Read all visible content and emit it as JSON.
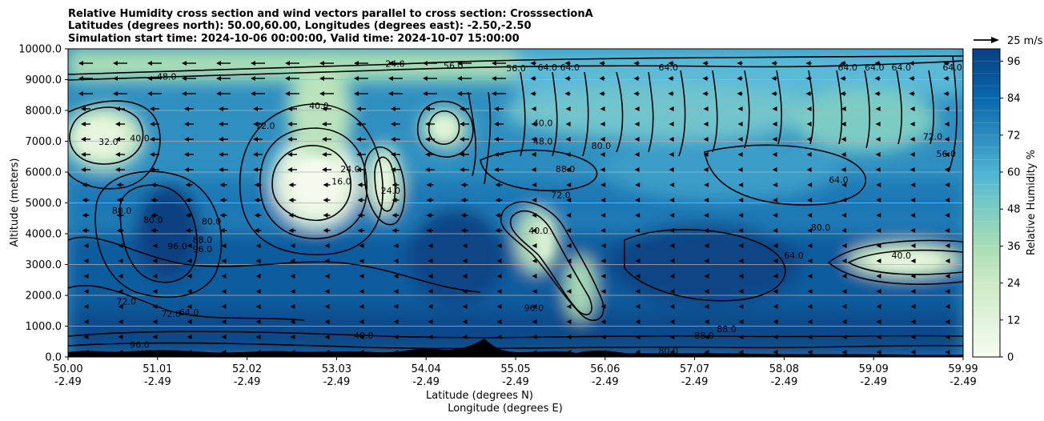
{
  "chart_data": {
    "type": "heatmap",
    "title": [
      "Relative Humidity cross section and wind vectors parallel to cross section: CrosssectionA",
      "Latitudes (degrees north): 50.00,60.00, Longitudes (degrees east): -2.50,-2.50",
      "Simulation start time: 2024-10-06 00:00:00, Valid time: 2024-10-07 15:00:00"
    ],
    "ylabel": "Altitude (meters)",
    "xlabel": [
      "Latitude (degrees N)",
      "Longitude (degrees E)"
    ],
    "yticks": [
      "0.0",
      "1000.0",
      "2000.0",
      "3000.0",
      "4000.0",
      "5000.0",
      "6000.0",
      "7000.0",
      "8000.0",
      "9000.0",
      "10000.0"
    ],
    "ylim": [
      0,
      10000
    ],
    "xticks": [
      {
        "lat": "50.00",
        "lon": "-2.49"
      },
      {
        "lat": "51.01",
        "lon": "-2.49"
      },
      {
        "lat": "52.02",
        "lon": "-2.49"
      },
      {
        "lat": "53.03",
        "lon": "-2.49"
      },
      {
        "lat": "54.04",
        "lon": "-2.49"
      },
      {
        "lat": "55.05",
        "lon": "-2.49"
      },
      {
        "lat": "56.06",
        "lon": "-2.49"
      },
      {
        "lat": "57.07",
        "lon": "-2.49"
      },
      {
        "lat": "58.08",
        "lon": "-2.49"
      },
      {
        "lat": "59.09",
        "lon": "-2.49"
      },
      {
        "lat": "59.99",
        "lon": "-2.49"
      }
    ],
    "xlim": [
      50.0,
      59.99
    ],
    "grid": "horizontal",
    "colorbar": {
      "label": "Relative Humidity %",
      "ticks": [
        "0",
        "12",
        "24",
        "36",
        "48",
        "60",
        "72",
        "84",
        "96"
      ],
      "range": [
        0,
        100
      ],
      "colormap": "GnBu"
    },
    "quiver_key": "25 m/s",
    "contour_labels": [
      {
        "text": "24.0",
        "lat": 53.65,
        "alt": 9420
      },
      {
        "text": "56.0",
        "lat": 54.3,
        "alt": 9350
      },
      {
        "text": "56.0",
        "lat": 55.0,
        "alt": 9270
      },
      {
        "text": "64.0",
        "lat": 55.35,
        "alt": 9300
      },
      {
        "text": "64.0",
        "lat": 55.6,
        "alt": 9300
      },
      {
        "text": "64.0",
        "lat": 56.7,
        "alt": 9300
      },
      {
        "text": "64.0",
        "lat": 58.7,
        "alt": 9300
      },
      {
        "text": "64.0",
        "lat": 59.0,
        "alt": 9300
      },
      {
        "text": "64.0",
        "lat": 59.3,
        "alt": 9300
      },
      {
        "text": "64.0",
        "lat": 59.87,
        "alt": 9300
      },
      {
        "text": "72.0",
        "lat": 52.2,
        "alt": 7400
      },
      {
        "text": "32.0",
        "lat": 50.45,
        "alt": 6880
      },
      {
        "text": "40.0",
        "lat": 50.8,
        "alt": 7000
      },
      {
        "text": "40.0",
        "lat": 52.8,
        "alt": 8050
      },
      {
        "text": "48.0",
        "lat": 51.1,
        "alt": 9000
      },
      {
        "text": "40.0",
        "lat": 55.3,
        "alt": 7500
      },
      {
        "text": "80.0",
        "lat": 55.95,
        "alt": 6750
      },
      {
        "text": "48.0",
        "lat": 55.3,
        "alt": 6900
      },
      {
        "text": "16.0",
        "lat": 53.05,
        "alt": 5600
      },
      {
        "text": "24.0",
        "lat": 53.15,
        "alt": 6000
      },
      {
        "text": "24.0",
        "lat": 53.6,
        "alt": 5300
      },
      {
        "text": "88.0",
        "lat": 55.55,
        "alt": 6000
      },
      {
        "text": "88.0",
        "lat": 50.6,
        "alt": 4650
      },
      {
        "text": "80.0",
        "lat": 50.95,
        "alt": 4350
      },
      {
        "text": "80.0",
        "lat": 51.6,
        "alt": 4300
      },
      {
        "text": "88.0",
        "lat": 51.5,
        "alt": 3700
      },
      {
        "text": "96.0",
        "lat": 51.22,
        "alt": 3500
      },
      {
        "text": "96.0",
        "lat": 51.5,
        "alt": 3400
      },
      {
        "text": "40.0",
        "lat": 55.25,
        "alt": 4000
      },
      {
        "text": "72.0",
        "lat": 55.5,
        "alt": 5150
      },
      {
        "text": "96.0",
        "lat": 55.2,
        "alt": 1500
      },
      {
        "text": "72.0",
        "lat": 50.65,
        "alt": 1700
      },
      {
        "text": "72.0",
        "lat": 51.15,
        "alt": 1300
      },
      {
        "text": "64.0",
        "lat": 51.35,
        "alt": 1350
      },
      {
        "text": "88.0",
        "lat": 57.35,
        "alt": 800
      },
      {
        "text": "88.0",
        "lat": 57.1,
        "alt": 600
      },
      {
        "text": "96.0",
        "lat": 50.8,
        "alt": 300
      },
      {
        "text": "64.0",
        "lat": 58.1,
        "alt": 3200
      },
      {
        "text": "40.0",
        "lat": 59.3,
        "alt": 3200
      },
      {
        "text": "64.0",
        "lat": 58.6,
        "alt": 5650
      },
      {
        "text": "56.0",
        "lat": 59.8,
        "alt": 6500
      },
      {
        "text": "72.0",
        "lat": 59.65,
        "alt": 7050
      },
      {
        "text": "80.0",
        "lat": 58.4,
        "alt": 4100
      },
      {
        "text": "40.0",
        "lat": 53.3,
        "alt": 600
      },
      {
        "text": "80.0",
        "lat": 56.7,
        "alt": 100
      }
    ]
  }
}
